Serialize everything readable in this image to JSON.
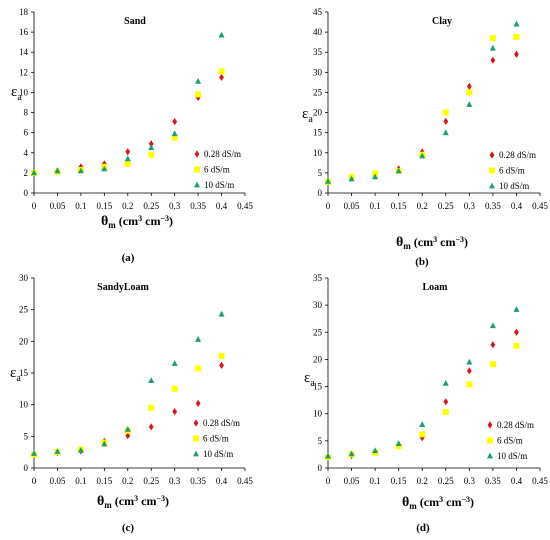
{
  "chart_data": [
    {
      "type": "scatter",
      "panel_label": "(a)",
      "title": "Sand",
      "ylabel": "ε",
      "ylabel_sub": "a",
      "xlabel": "θ",
      "xlabel_sub": "m",
      "xlabel_unit": "(cm",
      "xlabel_unit2": "cm",
      "xlabel_exp": "3",
      "xlabel_exp2": "−3",
      "xlabel_close": ")",
      "xlim": [
        0,
        0.45
      ],
      "ylim": [
        0,
        18
      ],
      "xticks": [
        "0",
        "0.05",
        "0.1",
        "0.15",
        "0.2",
        "0.25",
        "0.3",
        "0.35",
        "0.4",
        "0.45"
      ],
      "yticks": [
        "0",
        "2",
        "4",
        "6",
        "8",
        "10",
        "12",
        "14",
        "16",
        "18"
      ],
      "legend": "right",
      "series": [
        {
          "name": "0.28 dS/m",
          "marker": "diamond",
          "color": "#d7191c",
          "x": [
            0,
            0.05,
            0.1,
            0.15,
            0.2,
            0.25,
            0.3,
            0.35,
            0.4
          ],
          "y": [
            2.0,
            2.2,
            2.6,
            2.9,
            4.1,
            4.9,
            7.1,
            9.5,
            11.5
          ]
        },
        {
          "name": "6 dS/m",
          "marker": "square",
          "color": "#ffff00",
          "x": [
            0,
            0.05,
            0.1,
            0.15,
            0.2,
            0.25,
            0.3,
            0.35,
            0.4
          ],
          "y": [
            2.0,
            2.1,
            2.3,
            2.6,
            2.9,
            3.8,
            5.5,
            9.8,
            12.1
          ]
        },
        {
          "name": "10 dS/m",
          "marker": "triangle",
          "color": "#1a9e72",
          "x": [
            0,
            0.05,
            0.1,
            0.15,
            0.2,
            0.25,
            0.3,
            0.35,
            0.4
          ],
          "y": [
            2.0,
            2.2,
            2.2,
            2.4,
            3.4,
            4.5,
            5.9,
            11.1,
            15.7
          ]
        }
      ]
    },
    {
      "type": "scatter",
      "panel_label": "(b)",
      "title": "Clay",
      "ylabel": "ε",
      "ylabel_sub": "a",
      "xlabel": "θ",
      "xlabel_sub": "m",
      "xlabel_unit": "(cm",
      "xlabel_unit2": "cm",
      "xlabel_exp": "3",
      "xlabel_exp2": "−3",
      "xlabel_close": ")",
      "xlim": [
        0,
        0.45
      ],
      "ylim": [
        0,
        45
      ],
      "xticks": [
        "0",
        "0.05",
        "0.1",
        "0.15",
        "0.2",
        "0.25",
        "0.3",
        "0.35",
        "0.4",
        "0.45"
      ],
      "yticks": [
        "0",
        "5",
        "10",
        "15",
        "20",
        "25",
        "30",
        "35",
        "40",
        "45"
      ],
      "legend": "right",
      "series": [
        {
          "name": "0.28 dS/m",
          "marker": "diamond",
          "color": "#d7191c",
          "x": [
            0,
            0.05,
            0.1,
            0.15,
            0.2,
            0.25,
            0.3,
            0.35,
            0.4
          ],
          "y": [
            3.0,
            3.8,
            4.4,
            6.0,
            10.2,
            17.8,
            26.5,
            33.0,
            34.5
          ]
        },
        {
          "name": "6 dS/m",
          "marker": "square",
          "color": "#ffff00",
          "x": [
            0,
            0.05,
            0.1,
            0.15,
            0.2,
            0.25,
            0.3,
            0.35,
            0.4
          ],
          "y": [
            2.8,
            4.0,
            4.8,
            5.5,
            9.5,
            20.0,
            25.0,
            38.5,
            38.8
          ]
        },
        {
          "name": "10 dS/m",
          "marker": "triangle",
          "color": "#1a9e72",
          "x": [
            0,
            0.05,
            0.1,
            0.15,
            0.2,
            0.25,
            0.3,
            0.35,
            0.4
          ],
          "y": [
            2.9,
            3.5,
            4.0,
            5.5,
            9.2,
            15.0,
            22.0,
            36.0,
            42.0
          ]
        }
      ]
    },
    {
      "type": "scatter",
      "panel_label": "(c)",
      "title": "SandyLoam",
      "ylabel": "ε",
      "ylabel_sub": "a",
      "xlabel": "θ",
      "xlabel_sub": "m",
      "xlabel_unit": "(cm",
      "xlabel_unit2": "cm",
      "xlabel_exp": "3",
      "xlabel_exp2": "−3",
      "xlabel_close": ")",
      "xlim": [
        0,
        0.45
      ],
      "ylim": [
        0,
        30
      ],
      "xticks": [
        "0",
        "0.05",
        "0.1",
        "0.15",
        "0.2",
        "0.25",
        "0.3",
        "0.35",
        "0.4",
        "0.45"
      ],
      "yticks": [
        "0",
        "5",
        "10",
        "15",
        "20",
        "25",
        "30"
      ],
      "legend": "right",
      "series": [
        {
          "name": "0.28 dS/m",
          "marker": "diamond",
          "color": "#d7191c",
          "x": [
            0,
            0.05,
            0.1,
            0.15,
            0.2,
            0.25,
            0.3,
            0.35,
            0.4
          ],
          "y": [
            2.2,
            2.4,
            2.7,
            4.2,
            5.1,
            6.5,
            8.9,
            10.2,
            16.2
          ]
        },
        {
          "name": "6 dS/m",
          "marker": "square",
          "color": "#ffff00",
          "x": [
            0,
            0.05,
            0.1,
            0.15,
            0.2,
            0.25,
            0.3,
            0.35,
            0.4
          ],
          "y": [
            2.1,
            2.5,
            2.9,
            4.0,
            5.9,
            9.5,
            12.5,
            15.7,
            17.7
          ]
        },
        {
          "name": "10 dS/m",
          "marker": "triangle",
          "color": "#1a9e72",
          "x": [
            0,
            0.05,
            0.1,
            0.15,
            0.2,
            0.25,
            0.3,
            0.35,
            0.4
          ],
          "y": [
            2.3,
            2.6,
            2.8,
            3.8,
            6.1,
            13.8,
            16.5,
            20.3,
            24.3
          ]
        }
      ]
    },
    {
      "type": "scatter",
      "panel_label": "(d)",
      "title": "Loam",
      "ylabel": "ε",
      "ylabel_sub": "a",
      "xlabel": "θ",
      "xlabel_sub": "m",
      "xlabel_unit": "(cm",
      "xlabel_unit2": "cm",
      "xlabel_exp": "3",
      "xlabel_exp2": "−3",
      "xlabel_close": ")",
      "xlim": [
        0,
        0.45
      ],
      "ylim": [
        0,
        35
      ],
      "xticks": [
        "0",
        "0.05",
        "0.1",
        "0.15",
        "0.2",
        "0.25",
        "0.3",
        "0.35",
        "0.4",
        "0.45"
      ],
      "yticks": [
        "0",
        "5",
        "10",
        "15",
        "20",
        "25",
        "30",
        "35"
      ],
      "legend": "right",
      "series": [
        {
          "name": "0.28 dS/m",
          "marker": "diamond",
          "color": "#d7191c",
          "x": [
            0,
            0.05,
            0.1,
            0.15,
            0.2,
            0.25,
            0.3,
            0.35,
            0.4
          ],
          "y": [
            2.0,
            2.3,
            3.0,
            4.3,
            5.6,
            12.2,
            17.9,
            22.7,
            25.0
          ]
        },
        {
          "name": "6 dS/m",
          "marker": "square",
          "color": "#ffff00",
          "x": [
            0,
            0.05,
            0.1,
            0.15,
            0.2,
            0.25,
            0.3,
            0.35,
            0.4
          ],
          "y": [
            2.0,
            2.5,
            2.8,
            4.0,
            6.2,
            10.3,
            15.4,
            19.1,
            22.5
          ]
        },
        {
          "name": "10 dS/m",
          "marker": "triangle",
          "color": "#1a9e72",
          "x": [
            0,
            0.05,
            0.1,
            0.15,
            0.2,
            0.25,
            0.3,
            0.35,
            0.4
          ],
          "y": [
            2.2,
            2.6,
            3.2,
            4.5,
            8.0,
            15.6,
            19.5,
            26.2,
            29.2
          ]
        }
      ]
    }
  ]
}
